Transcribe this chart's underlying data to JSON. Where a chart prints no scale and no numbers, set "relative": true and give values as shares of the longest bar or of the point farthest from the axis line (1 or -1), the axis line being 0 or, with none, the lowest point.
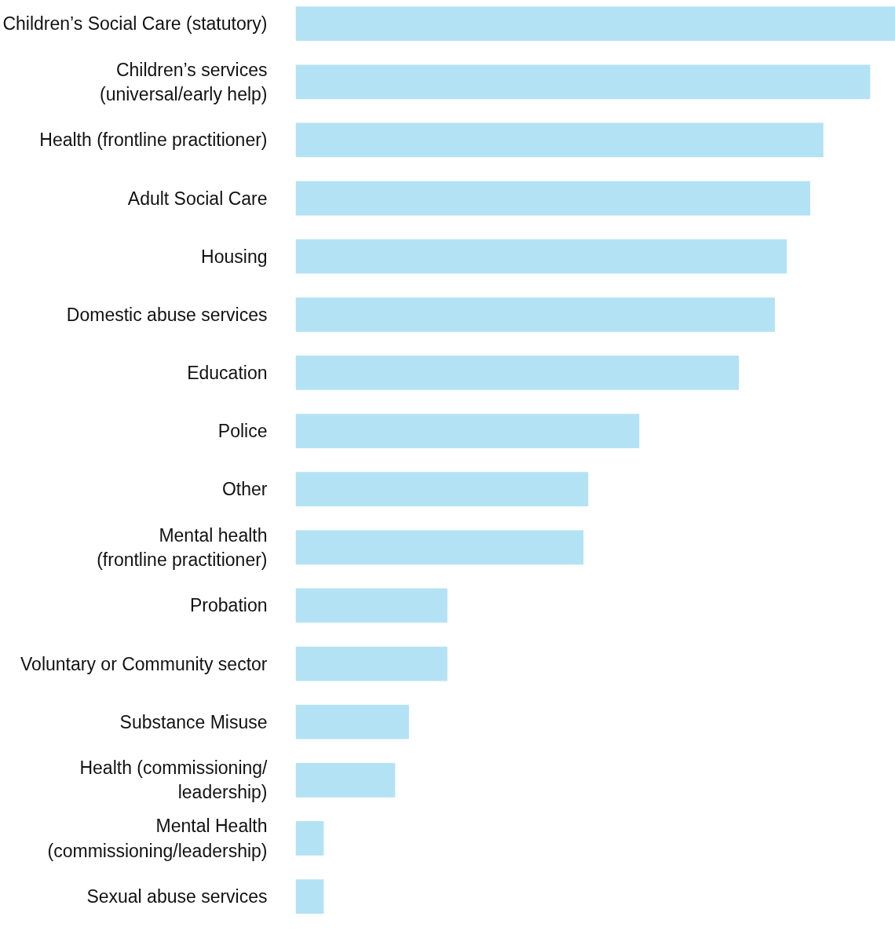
{
  "chart_data": {
    "type": "bar",
    "orientation": "horizontal",
    "relative": true,
    "color": "#b3e2f4",
    "categories": [
      "Children’s Social Care (statutory)",
      "Children’s services\n(universal/early help)",
      "Health (frontline practitioner)",
      "Adult Social Care",
      "Housing",
      "Domestic abuse services",
      "Education",
      "Police",
      "Other",
      "Mental health\n(frontline practitioner)",
      "Probation",
      "Voluntary or Community sector",
      "Substance Misuse",
      "Health (commissioning/\nleadership)",
      "Mental Health\n(commissioning/leadership)",
      "Sexual abuse services"
    ],
    "values": [
      1.0,
      0.958,
      0.88,
      0.858,
      0.819,
      0.799,
      0.739,
      0.573,
      0.488,
      0.48,
      0.253,
      0.253,
      0.189,
      0.166,
      0.047,
      0.047
    ]
  }
}
